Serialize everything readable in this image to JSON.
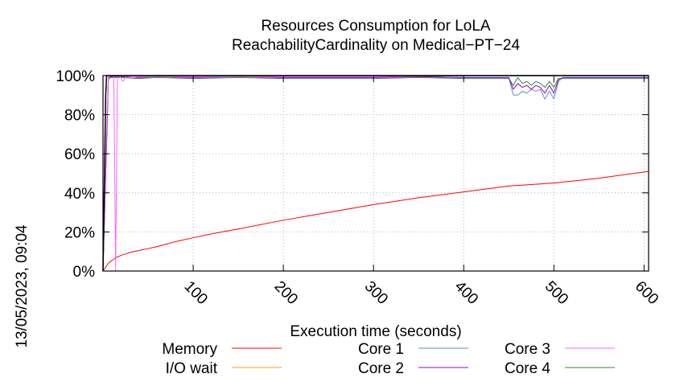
{
  "chart_data": {
    "type": "line",
    "title": [
      "Resources Consumption for LoLA",
      "ReachabilityCardinality on Medical−PT−24"
    ],
    "xlabel": "Execution time (seconds)",
    "ylabel": "",
    "xlim": [
      0,
      605
    ],
    "ylim": [
      0,
      100
    ],
    "x_ticks": [
      {
        "value": 100,
        "label": "100"
      },
      {
        "value": 200,
        "label": "200"
      },
      {
        "value": 300,
        "label": "300"
      },
      {
        "value": 400,
        "label": "400"
      },
      {
        "value": 500,
        "label": "500"
      },
      {
        "value": 600,
        "label": "600"
      }
    ],
    "y_ticks": [
      {
        "value": 0,
        "label": "0%"
      },
      {
        "value": 20,
        "label": "20%"
      },
      {
        "value": 40,
        "label": "40%"
      },
      {
        "value": 60,
        "label": "60%"
      },
      {
        "value": 80,
        "label": "80%"
      },
      {
        "value": 100,
        "label": "100%"
      }
    ],
    "grid": true,
    "legend_position": "bottom",
    "timestamp": "13/05/2023, 09:04",
    "series": [
      {
        "name": "Memory",
        "color": "#ff0000",
        "x": [
          0,
          3,
          6,
          10,
          15,
          20,
          30,
          40,
          50,
          60,
          80,
          100,
          120,
          150,
          200,
          250,
          300,
          350,
          400,
          450,
          500,
          550,
          605
        ],
        "y": [
          0,
          2,
          4,
          5.5,
          7,
          8,
          9.5,
          10.5,
          11.5,
          12.5,
          15,
          17,
          19,
          21.5,
          26,
          30,
          34,
          37.5,
          40.5,
          43.5,
          45,
          47.5,
          51
        ]
      },
      {
        "name": "I/O wait",
        "color": "#ffa500",
        "x": [
          0,
          605
        ],
        "y": [
          0,
          0
        ]
      },
      {
        "name": "Core 1",
        "color": "#6688dd",
        "x": [
          0,
          3,
          6,
          9,
          12,
          20,
          40,
          60,
          100,
          150,
          200,
          250,
          300,
          350,
          400,
          440,
          450,
          455,
          460,
          465,
          470,
          475,
          480,
          485,
          490,
          495,
          500,
          505,
          510,
          520,
          550,
          600,
          605
        ],
        "y": [
          0,
          50,
          99,
          99.5,
          99.5,
          99.5,
          99,
          99.5,
          99,
          99.5,
          99,
          99,
          99,
          99.5,
          99,
          99,
          99,
          90,
          90,
          92,
          91,
          93,
          92,
          93,
          88,
          92,
          88,
          97,
          99,
          99,
          99,
          99,
          99
        ]
      },
      {
        "name": "Core 2",
        "color": "#9400d3",
        "x": [
          0,
          3,
          6,
          9,
          12,
          20,
          40,
          60,
          100,
          150,
          200,
          250,
          300,
          350,
          400,
          440,
          450,
          455,
          460,
          465,
          470,
          475,
          480,
          485,
          490,
          495,
          500,
          505,
          510,
          520,
          550,
          600,
          605
        ],
        "y": [
          0,
          50,
          99,
          99.5,
          99.5,
          99.5,
          99,
          99.5,
          99,
          99.5,
          99,
          99,
          99,
          99.5,
          99,
          99,
          99,
          93,
          96,
          94,
          95,
          93,
          95,
          94,
          91,
          95,
          91,
          98,
          99,
          99,
          99,
          99,
          99
        ]
      },
      {
        "name": "Core 3",
        "color": "#ff66ff",
        "x": [
          0,
          3,
          6,
          9,
          12,
          14,
          16,
          18,
          22,
          26,
          30,
          40,
          60,
          100,
          200,
          300,
          400,
          500,
          605
        ],
        "y": [
          0,
          60,
          100,
          100,
          100,
          0,
          100,
          100,
          97,
          100,
          99,
          99.5,
          99.5,
          99.5,
          99.5,
          99.5,
          100,
          100,
          100
        ]
      },
      {
        "name": "Core 4",
        "color": "#2e8b2e",
        "x": [
          0,
          3,
          6,
          9,
          12,
          20,
          40,
          60,
          100,
          150,
          200,
          250,
          300,
          350,
          400,
          440,
          450,
          455,
          460,
          465,
          470,
          475,
          480,
          485,
          490,
          495,
          500,
          505,
          510,
          520,
          550,
          600,
          605
        ],
        "y": [
          0,
          50,
          98.5,
          99,
          99,
          99,
          98.5,
          99,
          98.5,
          99,
          98.5,
          98.5,
          98.5,
          99,
          98.5,
          98.5,
          98.5,
          95,
          99,
          96,
          97,
          95,
          97,
          96,
          94,
          97,
          94,
          98.5,
          98.5,
          98.5,
          98.5,
          98.5,
          98.5
        ]
      }
    ],
    "overlay": {
      "color": "#000000",
      "x": [
        0,
        2,
        3,
        4,
        6,
        605
      ],
      "y": [
        0,
        60,
        90,
        100,
        100,
        100
      ]
    }
  }
}
